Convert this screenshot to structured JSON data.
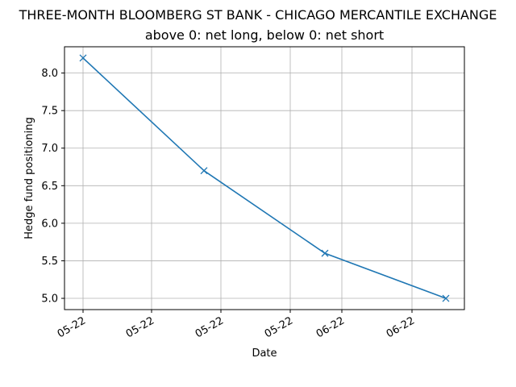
{
  "chart_data": {
    "type": "line",
    "title": "THREE-MONTH BLOOMBERG  ST BANK - CHICAGO MERCANTILE EXCHANGE",
    "subtitle": "above 0: net long, below 0: net short",
    "xlabel": "Date",
    "ylabel": "Hedge fund positioning",
    "x_tick_labels": [
      "05-22",
      "05-22",
      "05-22",
      "05-22",
      "06-22",
      "06-22"
    ],
    "y_ticks": [
      5.0,
      5.5,
      6.0,
      6.5,
      7.0,
      7.5,
      8.0
    ],
    "y_tick_labels": [
      "5.0",
      "5.5",
      "6.0",
      "6.5",
      "7.0",
      "7.5",
      "8.0"
    ],
    "ylim": [
      4.85,
      8.35
    ],
    "grid": true,
    "series": [
      {
        "marker": "x",
        "color": "#1f77b4",
        "values": [
          8.2,
          6.7,
          5.6,
          5.0
        ]
      }
    ]
  }
}
